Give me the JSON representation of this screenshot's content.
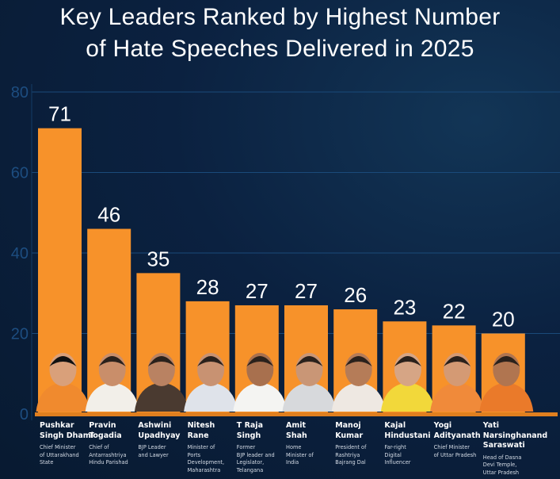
{
  "title": {
    "line1": "Key Leaders Ranked by Highest Number",
    "line2": "of Hate Speeches Delivered in 2025"
  },
  "colors": {
    "background": "#0b2140",
    "bar": "#f7922a",
    "baseline": "#e07f1f",
    "tick_text": "#1d4d80",
    "gridline": "#1a4a7a",
    "value_label": "#ffffff"
  },
  "chart_data": {
    "type": "bar",
    "title": "Key Leaders Ranked by Highest Number of Hate Speeches Delivered in 2025",
    "xlabel": "",
    "ylabel": "",
    "ylim": [
      0,
      80
    ],
    "yticks": [
      0,
      20,
      40,
      60,
      80
    ],
    "grid": true,
    "legend": "none",
    "categories": [
      "Pushkar Singh Dhami",
      "Pravin Togadia",
      "Ashwini Upadhyay",
      "Nitesh Rane",
      "T Raja Singh",
      "Amit Shah",
      "Manoj Kumar",
      "Kajal Hindustani",
      "Yogi Adityanath",
      "Yati Narsinghanand Saraswati"
    ],
    "values": [
      71,
      46,
      35,
      28,
      27,
      27,
      26,
      23,
      22,
      20
    ],
    "data_labels": [
      "71",
      "46",
      "35",
      "28",
      "27",
      "27",
      "26",
      "23",
      "22",
      "20"
    ]
  },
  "leaders": [
    {
      "name_lines": [
        "Pushkar",
        "Singh Dhami"
      ],
      "desc_lines": [
        "Chief Minister",
        "of Uttarakhand",
        "State"
      ],
      "photo": "portrait-photo"
    },
    {
      "name_lines": [
        "Pravin",
        "Togadia"
      ],
      "desc_lines": [
        "Chief of",
        "Antarrashtriya",
        "Hindu Parishad"
      ],
      "photo": "portrait-photo"
    },
    {
      "name_lines": [
        "Ashwini",
        "Upadhyay"
      ],
      "desc_lines": [
        "BJP Leader",
        "and Lawyer"
      ],
      "photo": "portrait-photo"
    },
    {
      "name_lines": [
        "Nitesh",
        "Rane"
      ],
      "desc_lines": [
        "Minister of",
        "Ports",
        "Development,",
        "Maharashtra"
      ],
      "photo": "portrait-photo"
    },
    {
      "name_lines": [
        "T Raja",
        "Singh"
      ],
      "desc_lines": [
        "Former",
        "BJP leader and",
        "Legislator,",
        "Telangana"
      ],
      "photo": "portrait-photo"
    },
    {
      "name_lines": [
        "Amit",
        "Shah"
      ],
      "desc_lines": [
        "Home",
        "Minister of",
        "India"
      ],
      "photo": "portrait-photo"
    },
    {
      "name_lines": [
        "Manoj",
        "Kumar"
      ],
      "desc_lines": [
        "President of",
        "Rashtriya",
        "Bajrang Dal"
      ],
      "photo": "portrait-photo"
    },
    {
      "name_lines": [
        "Kajal",
        "Hindustani"
      ],
      "desc_lines": [
        "Far-right",
        "Digital",
        "Influencer"
      ],
      "photo": "portrait-photo"
    },
    {
      "name_lines": [
        "Yogi",
        "Adityanath"
      ],
      "desc_lines": [
        "Chief Minister",
        "of Uttar Pradesh"
      ],
      "photo": "portrait-photo"
    },
    {
      "name_lines": [
        "Yati",
        "Narsinghanand",
        "Saraswati"
      ],
      "desc_lines": [
        "Head of Dasna",
        "Devi Temple,",
        "Uttar Pradesh"
      ],
      "photo": "portrait-photo"
    }
  ]
}
